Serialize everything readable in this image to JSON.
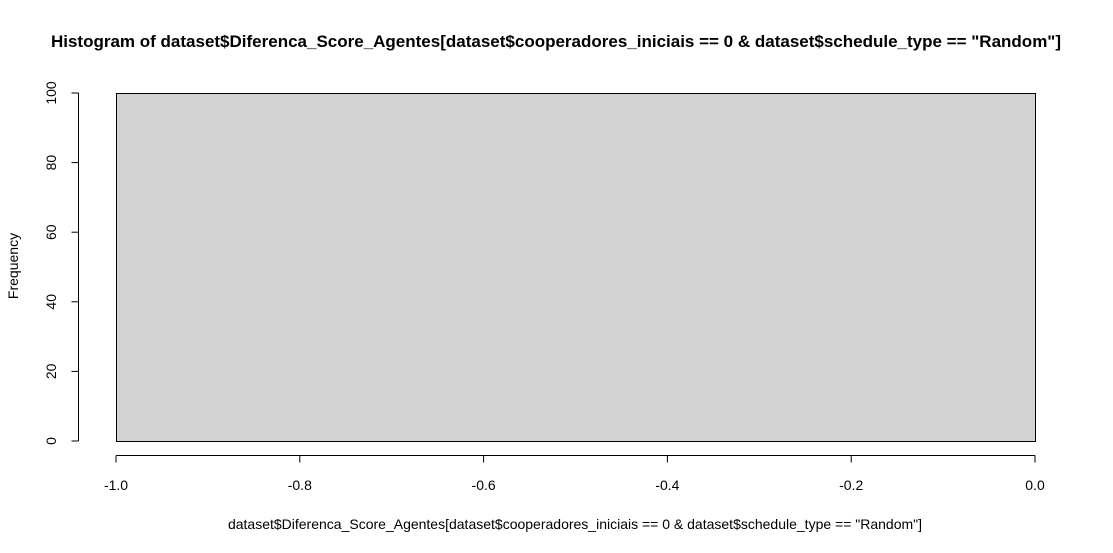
{
  "chart_data": {
    "type": "bar",
    "title": "Histogram of dataset$Diferenca_Score_Agentes[dataset$cooperadores_iniciais == 0 & dataset$schedule_type == \"Random\"]",
    "xlabel": "dataset$Diferenca_Score_Agentes[dataset$cooperadores_iniciais == 0 & dataset$schedule_type == \"Random\"]",
    "ylabel": "Frequency",
    "xlim": [
      -1.0,
      0.0
    ],
    "ylim": [
      0,
      100
    ],
    "x_ticks": [
      "-1.0",
      "-0.8",
      "-0.6",
      "-0.4",
      "-0.2",
      "0.0"
    ],
    "x_tick_values": [
      -1.0,
      -0.8,
      -0.6,
      -0.4,
      -0.2,
      0.0
    ],
    "y_ticks": [
      "0",
      "20",
      "40",
      "60",
      "80",
      "100"
    ],
    "y_tick_values": [
      0,
      20,
      40,
      60,
      80,
      100
    ],
    "bins": [
      {
        "start": -1.0,
        "end": 0.0,
        "count": 100
      }
    ],
    "colors": {
      "bar_fill": "#d3d3d3",
      "bar_stroke": "#000000",
      "axis": "#000000"
    },
    "grid": false,
    "legend": "none"
  }
}
